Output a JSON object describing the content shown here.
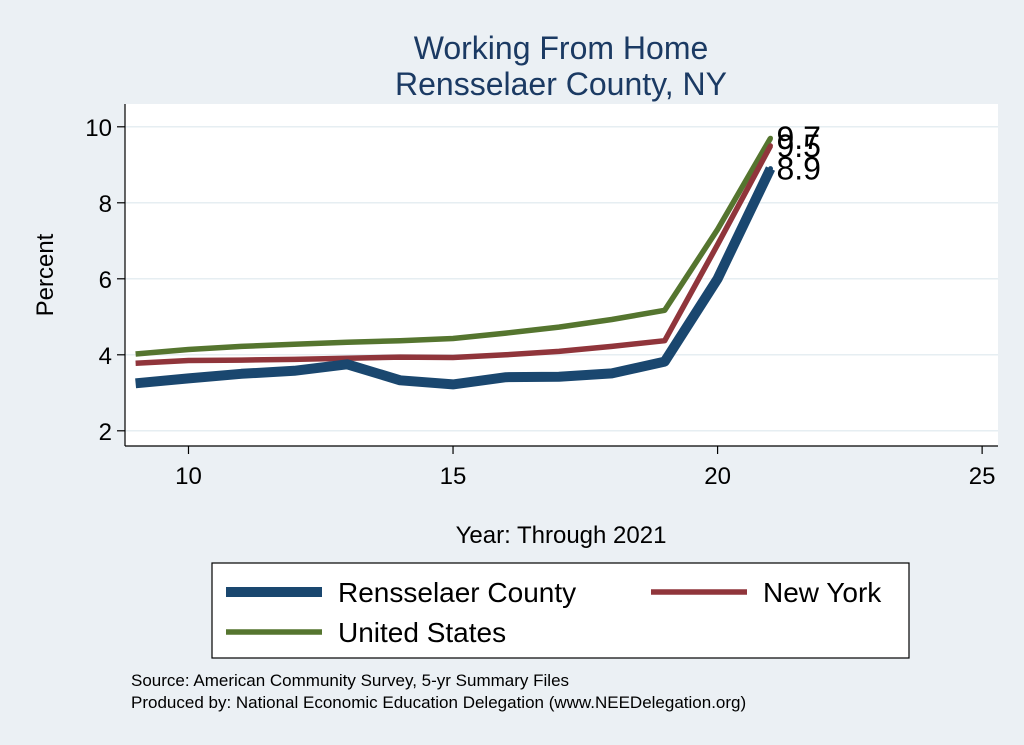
{
  "chart_data": {
    "type": "line",
    "title": [
      "Working From Home",
      "Rensselaer County, NY"
    ],
    "xlabel": "Year: Through 2021",
    "ylabel": "Percent",
    "xlim": [
      8.8,
      25.3
    ],
    "ylim": [
      1.6,
      10.6
    ],
    "xticks": [
      10,
      15,
      20,
      25
    ],
    "yticks": [
      2,
      4,
      6,
      8,
      10
    ],
    "grid": true,
    "legend_position": "bottom",
    "series": [
      {
        "name": "Rensselaer County",
        "color": "#1a476f",
        "x": [
          9,
          10,
          11,
          12,
          13,
          14,
          15,
          16,
          17,
          18,
          19,
          20,
          21
        ],
        "y": [
          3.25,
          3.38,
          3.5,
          3.58,
          3.75,
          3.33,
          3.22,
          3.41,
          3.42,
          3.51,
          3.82,
          6.0,
          8.9
        ],
        "end_label": "8.9"
      },
      {
        "name": "New York",
        "color": "#90353b",
        "x": [
          9,
          10,
          11,
          12,
          13,
          14,
          15,
          16,
          17,
          18,
          19,
          20,
          21
        ],
        "y": [
          3.78,
          3.85,
          3.86,
          3.88,
          3.91,
          3.94,
          3.93,
          4.0,
          4.09,
          4.22,
          4.37,
          6.9,
          9.5
        ],
        "end_label": "9.5"
      },
      {
        "name": "United States",
        "color": "#55752f",
        "x": [
          9,
          10,
          11,
          12,
          13,
          14,
          15,
          16,
          17,
          18,
          19,
          20,
          21
        ],
        "y": [
          4.02,
          4.14,
          4.22,
          4.28,
          4.33,
          4.37,
          4.43,
          4.57,
          4.73,
          4.93,
          5.17,
          7.3,
          9.7
        ],
        "end_label": "9.7"
      }
    ],
    "notes": [
      "Source: American Community Survey, 5-yr Summary Files",
      "Produced by: National Economic Education Delegation (www.NEEDelegation.org)"
    ]
  }
}
